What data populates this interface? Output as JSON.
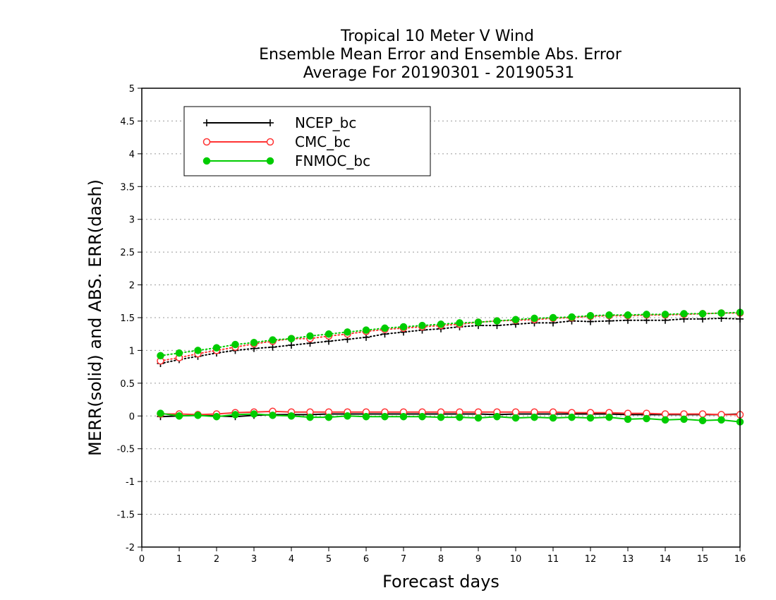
{
  "chart_data": {
    "type": "line",
    "title_lines": [
      "Tropical 10 Meter V Wind",
      "Ensemble Mean Error and Ensemble Abs. Error",
      "Average For 20190301 - 20190531"
    ],
    "xlabel": "Forecast days",
    "ylabel": "MERR(solid) and ABS. ERR(dash)",
    "xlim": [
      0,
      16
    ],
    "ylim": [
      -2,
      5
    ],
    "x_ticks": [
      "0",
      "1",
      "2",
      "3",
      "4",
      "5",
      "6",
      "7",
      "8",
      "9",
      "10",
      "11",
      "12",
      "13",
      "14",
      "15",
      "16"
    ],
    "y_ticks": [
      "5",
      "4.5",
      "4",
      "3.5",
      "3",
      "2.5",
      "2",
      "1.5",
      "1",
      "0.5",
      "0",
      "-0.5",
      "-1",
      "-1.5",
      "-2"
    ],
    "grid": "horizontal dotted",
    "legend_position": "top-left",
    "x": [
      0.5,
      1,
      1.5,
      2,
      2.5,
      3,
      3.5,
      4,
      4.5,
      5,
      5.5,
      6,
      6.5,
      7,
      7.5,
      8,
      8.5,
      9,
      9.5,
      10,
      10.5,
      11,
      11.5,
      12,
      12.5,
      13,
      13.5,
      14,
      14.5,
      15,
      15.5,
      16
    ],
    "series": [
      {
        "name": "NCEP_bc",
        "color": "#000000",
        "marker": "plus",
        "merr": [
          -0.01,
          0.0,
          0.01,
          0.0,
          -0.01,
          0.01,
          0.02,
          0.02,
          0.02,
          0.03,
          0.03,
          0.03,
          0.03,
          0.03,
          0.03,
          0.03,
          0.03,
          0.03,
          0.02,
          0.03,
          0.03,
          0.03,
          0.03,
          0.03,
          0.03,
          0.02,
          0.02,
          0.02,
          0.02,
          0.02,
          0.02,
          0.03
        ],
        "abs_err": [
          0.8,
          0.86,
          0.91,
          0.96,
          1.0,
          1.03,
          1.05,
          1.08,
          1.11,
          1.14,
          1.17,
          1.2,
          1.25,
          1.28,
          1.31,
          1.33,
          1.36,
          1.38,
          1.38,
          1.4,
          1.42,
          1.42,
          1.45,
          1.44,
          1.45,
          1.46,
          1.46,
          1.46,
          1.48,
          1.48,
          1.49,
          1.48
        ]
      },
      {
        "name": "CMC_bc",
        "color": "#ff3333",
        "marker": "open-circle",
        "merr": [
          0.03,
          0.03,
          0.02,
          0.03,
          0.05,
          0.06,
          0.07,
          0.06,
          0.06,
          0.06,
          0.06,
          0.06,
          0.06,
          0.06,
          0.06,
          0.06,
          0.06,
          0.06,
          0.06,
          0.06,
          0.06,
          0.06,
          0.05,
          0.05,
          0.05,
          0.04,
          0.04,
          0.03,
          0.03,
          0.03,
          0.02,
          0.02
        ],
        "abs_err": [
          0.84,
          0.89,
          0.95,
          1.0,
          1.05,
          1.1,
          1.14,
          1.18,
          1.18,
          1.22,
          1.25,
          1.29,
          1.32,
          1.34,
          1.36,
          1.38,
          1.4,
          1.43,
          1.45,
          1.46,
          1.47,
          1.49,
          1.5,
          1.52,
          1.53,
          1.53,
          1.54,
          1.54,
          1.55,
          1.56,
          1.57,
          1.57
        ]
      },
      {
        "name": "FNMOC_bc",
        "color": "#00cc00",
        "marker": "filled-circle",
        "merr": [
          0.04,
          0.0,
          0.01,
          -0.01,
          0.02,
          0.03,
          0.01,
          0.0,
          -0.02,
          -0.02,
          0.0,
          -0.01,
          -0.01,
          -0.01,
          -0.01,
          -0.02,
          -0.02,
          -0.03,
          -0.01,
          -0.03,
          -0.02,
          -0.03,
          -0.02,
          -0.03,
          -0.02,
          -0.05,
          -0.04,
          -0.06,
          -0.05,
          -0.07,
          -0.06,
          -0.09
        ],
        "abs_err": [
          0.92,
          0.96,
          1.0,
          1.04,
          1.09,
          1.12,
          1.16,
          1.18,
          1.22,
          1.25,
          1.28,
          1.31,
          1.34,
          1.36,
          1.38,
          1.4,
          1.42,
          1.43,
          1.45,
          1.47,
          1.49,
          1.5,
          1.51,
          1.53,
          1.54,
          1.54,
          1.55,
          1.55,
          1.56,
          1.56,
          1.57,
          1.58
        ]
      }
    ]
  }
}
